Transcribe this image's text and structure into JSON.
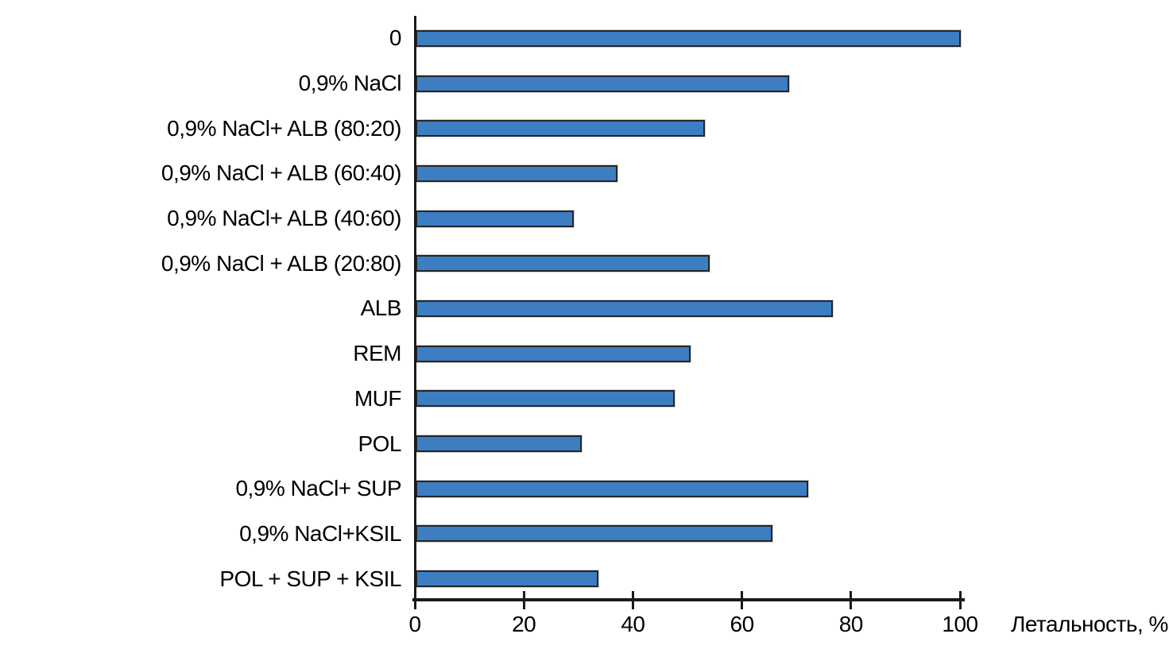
{
  "chart_data": {
    "type": "bar",
    "orientation": "horizontal",
    "title": "",
    "xlabel": "Летальность, %",
    "ylabel": "",
    "categories": [
      "0",
      "0,9% NaCl",
      "0,9% NaCl+ ALB (80:20)",
      "0,9% NaCl + ALB (60:40)",
      "0,9% NaCl+ ALB (40:60)",
      "0,9% NaCl + ALB (20:80)",
      "ALB",
      "REM",
      "MUF",
      "POL",
      "0,9% NaCl+ SUP",
      "0,9% NaCl+KSIL",
      "POL + SUP + KSIL"
    ],
    "values": [
      100,
      68.5,
      53,
      37,
      29,
      54,
      76.5,
      50.5,
      47.5,
      30.5,
      72,
      65.5,
      33.5
    ],
    "xticks": [
      0,
      20,
      40,
      60,
      80,
      100
    ],
    "xlim": [
      0,
      100
    ],
    "grid": false,
    "legend_position": "none",
    "bar_color": "#3D7EC3",
    "bar_border_color": "#262626",
    "axis_color": "#1A1A1A",
    "text_color": "#000000"
  }
}
